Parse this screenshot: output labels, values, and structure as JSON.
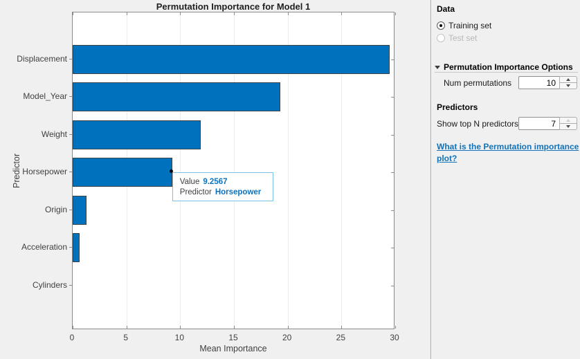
{
  "chart_data": {
    "type": "bar",
    "orientation": "horizontal",
    "title": "Permutation Importance for Model 1",
    "xlabel": "Mean Importance",
    "ylabel": "Predictor",
    "categories": [
      "Displacement",
      "Model_Year",
      "Weight",
      "Horsepower",
      "Origin",
      "Acceleration",
      "Cylinders"
    ],
    "values": [
      29.5,
      19.3,
      11.9,
      9.2567,
      1.3,
      0.65,
      0.02
    ],
    "xlim": [
      0,
      30
    ],
    "xticks": [
      0,
      5,
      10,
      15,
      20,
      25,
      30
    ],
    "grid": "vertical",
    "legend": "none",
    "bar_color": "#0072BD",
    "bar_edge_color": "#3a424a"
  },
  "datatip": {
    "rows": [
      {
        "label": "Value",
        "value": "9.2567"
      },
      {
        "label": "Predictor",
        "value": "Horsepower"
      }
    ],
    "target_category": "Horsepower",
    "target_value": 9.2567,
    "value_color": "#0b72bd",
    "border_color": "#7fbfe4"
  },
  "panel": {
    "data_section": {
      "title": "Data",
      "options": [
        {
          "label": "Training set",
          "selected": true,
          "enabled": true
        },
        {
          "label": "Test set",
          "selected": false,
          "enabled": false
        }
      ]
    },
    "perm_options_section": {
      "title": "Permutation Importance Options",
      "expanded": true,
      "num_permutations_label": "Num permutations",
      "num_permutations_value": "10",
      "increment_enabled": true,
      "decrement_enabled": true
    },
    "predictors_section": {
      "title": "Predictors",
      "show_top_label": "Show top N predictors",
      "show_top_value": "7",
      "increment_enabled": false,
      "decrement_enabled": true
    },
    "help_link_text": "What is the Permutation importance plot?"
  },
  "colors": {
    "accent_blue": "#0072BD",
    "link_blue": "#1372b8",
    "figure_background": "#f0f0f0"
  }
}
